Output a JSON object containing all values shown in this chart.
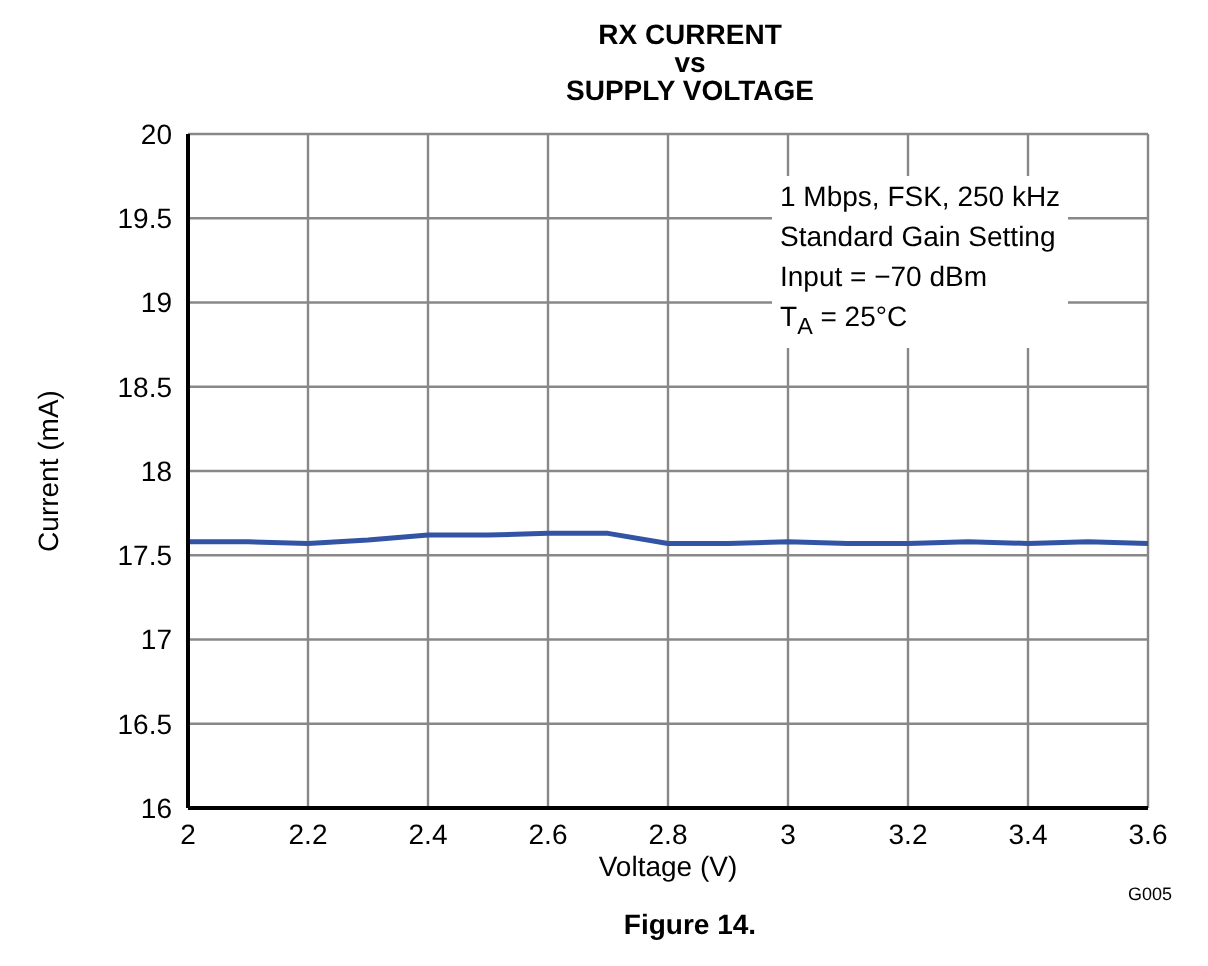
{
  "chart_data": {
    "type": "line",
    "title": "RX CURRENT\nvs\nSUPPLY VOLTAGE",
    "xlabel": "Voltage (V)",
    "ylabel": "Current (mA)",
    "x": [
      2.0,
      2.1,
      2.2,
      2.3,
      2.4,
      2.5,
      2.6,
      2.7,
      2.8,
      2.9,
      3.0,
      3.1,
      3.2,
      3.3,
      3.4,
      3.5,
      3.6
    ],
    "series": [
      {
        "color": "#3353a4",
        "values": [
          17.58,
          17.58,
          17.57,
          17.59,
          17.62,
          17.62,
          17.63,
          17.63,
          17.57,
          17.57,
          17.58,
          17.57,
          17.57,
          17.58,
          17.57,
          17.58,
          17.57
        ]
      }
    ],
    "xlim": [
      2,
      3.6
    ],
    "xticks": [
      2,
      2.2,
      2.4,
      2.6,
      2.8,
      3,
      3.2,
      3.4,
      3.6
    ],
    "ylim": [
      16,
      20
    ],
    "yticks": [
      16,
      16.5,
      17,
      17.5,
      18,
      18.5,
      19,
      19.5,
      20
    ],
    "grid": true,
    "marker": "none",
    "line_style": "solid",
    "annotations": [
      "1 Mbps, FSK, 250 kHz",
      "Standard Gain Setting",
      "Input = −70 dBm",
      "T$_{A}$ = 25°C",
      "G005",
      "Figure 14."
    ]
  }
}
